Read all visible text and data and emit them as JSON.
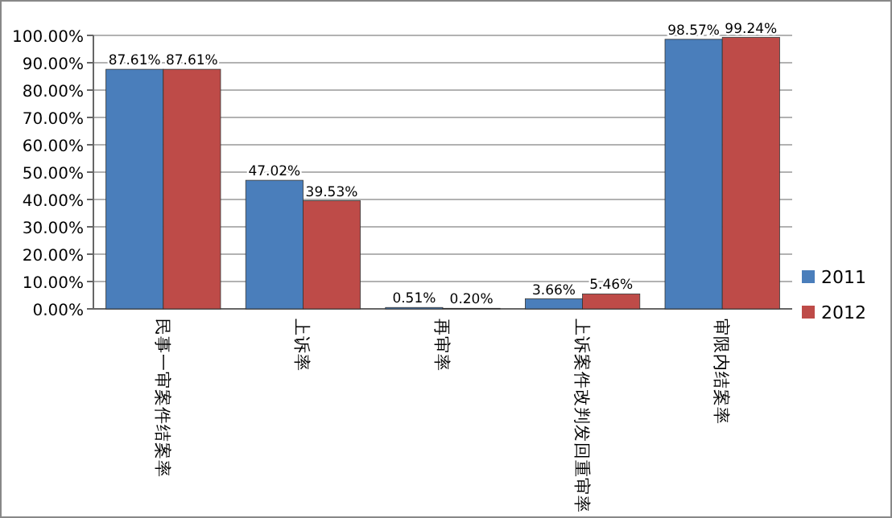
{
  "chart_data": {
    "type": "bar",
    "categories": [
      "民事一审案件结案率",
      "上诉率",
      "再审率",
      "上诉案件改判发回重审率",
      "审限内结案率"
    ],
    "series": [
      {
        "name": "2011",
        "color": "#4a7ebb",
        "values": [
          87.61,
          47.02,
          0.51,
          3.66,
          98.57
        ],
        "value_labels": [
          "87.61%",
          "47.02%",
          "0.51%",
          "3.66%",
          "98.57%"
        ]
      },
      {
        "name": "2012",
        "color": "#be4b48",
        "values": [
          87.61,
          39.53,
          0.2,
          5.46,
          99.24
        ],
        "value_labels": [
          "87.61%",
          "39.53%",
          "0.20%",
          "5.46%",
          "99.24%"
        ]
      }
    ],
    "ylim": [
      0,
      100
    ],
    "yticks": [
      {
        "value": 0,
        "label": "0.00%"
      },
      {
        "value": 10,
        "label": "10.00%"
      },
      {
        "value": 20,
        "label": "20.00%"
      },
      {
        "value": 30,
        "label": "30.00%"
      },
      {
        "value": 40,
        "label": "40.00%"
      },
      {
        "value": 50,
        "label": "50.00%"
      },
      {
        "value": 60,
        "label": "60.00%"
      },
      {
        "value": 70,
        "label": "70.00%"
      },
      {
        "value": 80,
        "label": "80.00%"
      },
      {
        "value": 90,
        "label": "90.00%"
      },
      {
        "value": 100,
        "label": "100.00%"
      }
    ],
    "grid": "y",
    "legend": "right"
  }
}
